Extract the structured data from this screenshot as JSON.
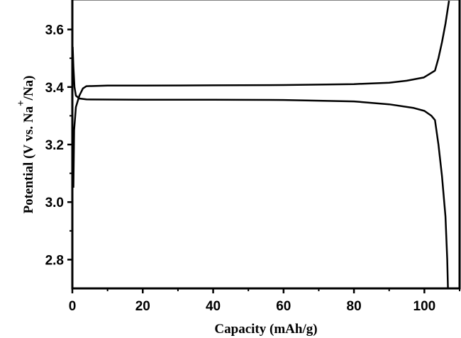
{
  "chart_data": {
    "type": "line",
    "xlabel": "Capacity (mAh/g)",
    "ylabel": "Potential (V vs. Na+/Na)",
    "ylabel_parts": {
      "main": "Potential (V vs. Na",
      "sup": "+",
      "tail": "/Na)"
    },
    "xlim": [
      0,
      110
    ],
    "ylim": [
      2.7,
      3.7
    ],
    "xticks": [
      0,
      20,
      40,
      60,
      80,
      100
    ],
    "xtick_labels": [
      "0",
      "20",
      "40",
      "60",
      "80",
      "100"
    ],
    "yticks": [
      2.8,
      3.0,
      3.2,
      3.4,
      3.6
    ],
    "ytick_labels": [
      "2.8",
      "3.0",
      "3.2",
      "3.4",
      "3.6"
    ],
    "grid": false,
    "line_color": "#000000",
    "series": [
      {
        "x": [
          0.3,
          0.5,
          1,
          2,
          3,
          4,
          10,
          20,
          40,
          60,
          80,
          90,
          95,
          99.8,
          103,
          104,
          105,
          106,
          107
        ],
        "y": [
          3.05,
          3.25,
          3.33,
          3.37,
          3.395,
          3.403,
          3.405,
          3.405,
          3.406,
          3.407,
          3.41,
          3.415,
          3.422,
          3.433,
          3.457,
          3.5,
          3.556,
          3.62,
          3.7
        ]
      },
      {
        "x": [
          0.1,
          0.3,
          0.6,
          1,
          2,
          4,
          20,
          40,
          60,
          80,
          90,
          97,
          100,
          102,
          103,
          104,
          105,
          106,
          106.5,
          106.7
        ],
        "y": [
          3.54,
          3.47,
          3.4,
          3.37,
          3.36,
          3.357,
          3.356,
          3.356,
          3.355,
          3.35,
          3.34,
          3.327,
          3.317,
          3.3,
          3.285,
          3.2,
          3.09,
          2.95,
          2.8,
          2.7
        ]
      }
    ]
  }
}
